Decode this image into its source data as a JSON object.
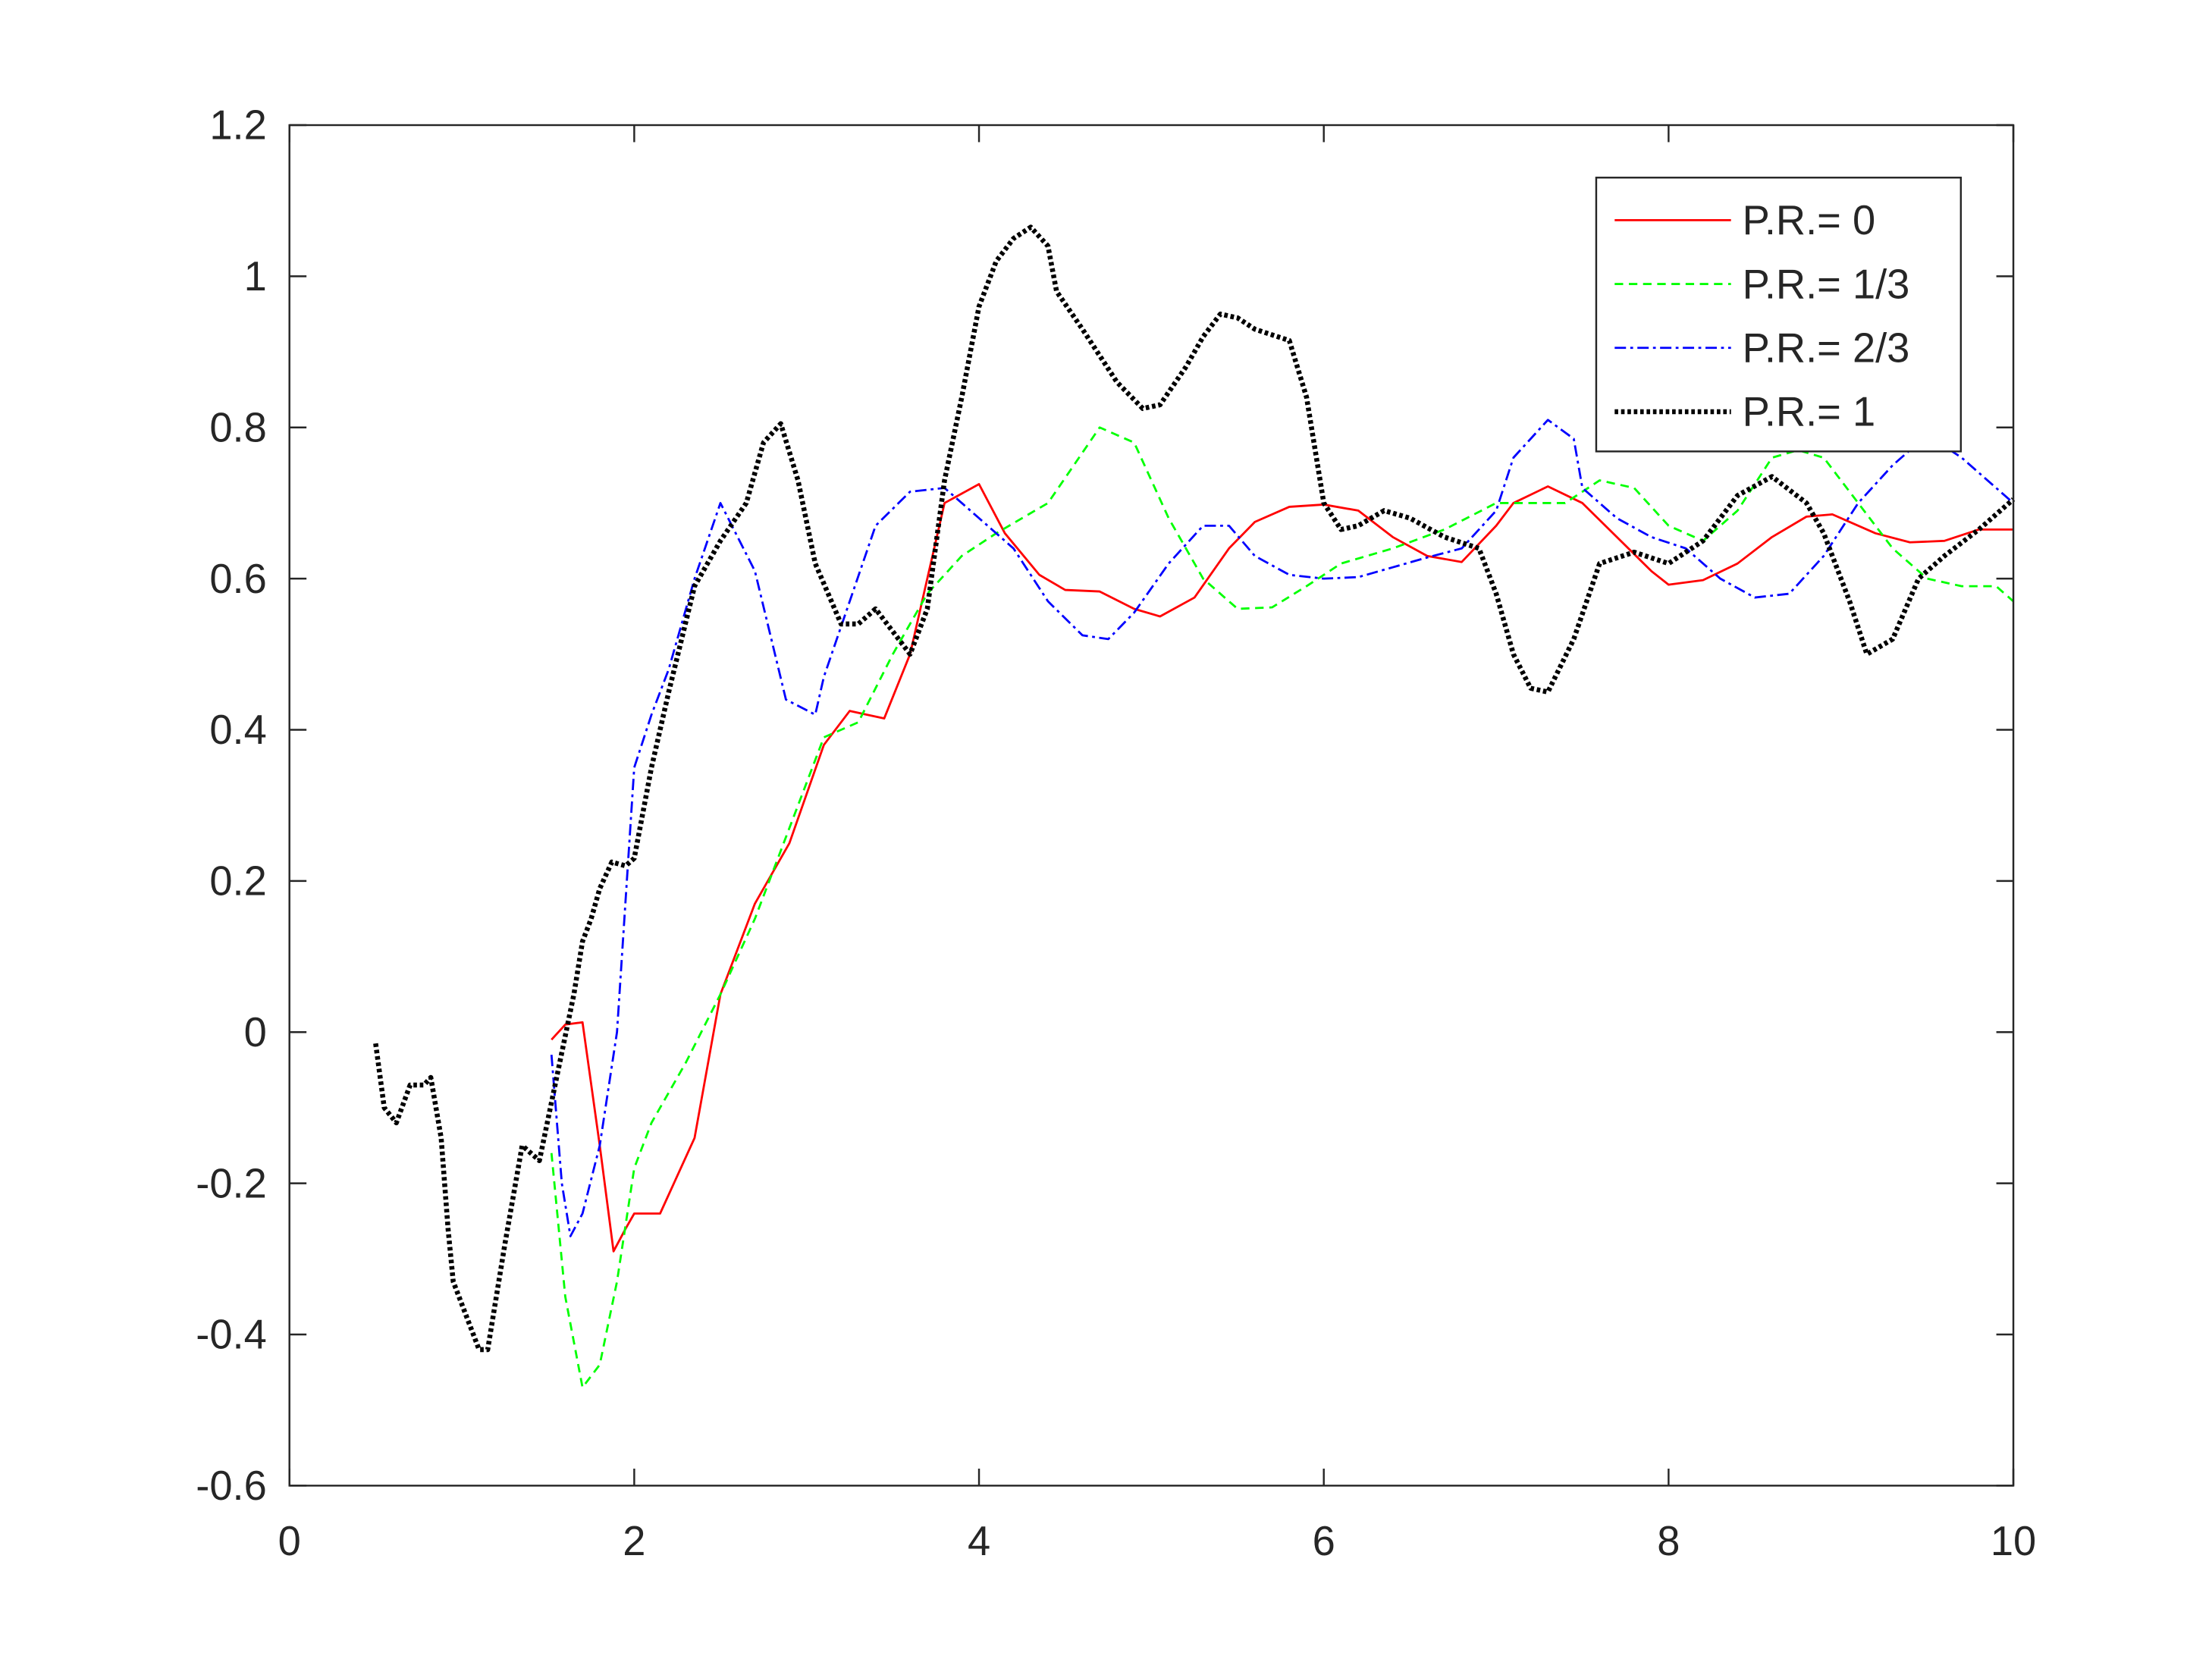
{
  "chart_data": {
    "type": "line",
    "xlim": [
      0,
      10
    ],
    "xticks": [
      0,
      2,
      4,
      6,
      8,
      10
    ],
    "ylim": [
      -0.6,
      1.2
    ],
    "yticks": [
      -0.6,
      -0.4,
      -0.2,
      0,
      0.2,
      0.4,
      0.6,
      0.8,
      1,
      1.2
    ],
    "legend": "northeast",
    "series": [
      {
        "name": "P.R.= 0",
        "color": "#ff0000",
        "dash": "solid",
        "x": [
          1.52,
          1.6,
          1.7,
          1.8,
          1.88,
          1.95,
          2.0,
          2.15,
          2.35,
          2.5,
          2.7,
          2.9,
          3.1,
          3.25,
          3.35,
          3.45,
          3.6,
          3.8,
          4.0,
          4.15,
          4.35,
          4.5,
          4.7,
          4.9,
          5.05,
          5.25,
          5.45,
          5.6,
          5.8,
          6.0,
          6.2,
          6.4,
          6.6,
          6.8,
          7.0,
          7.1,
          7.3,
          7.5,
          7.7,
          7.9,
          8.0,
          8.2,
          8.4,
          8.6,
          8.8,
          8.95,
          9.2,
          9.4,
          9.6,
          9.8,
          10
        ],
        "values": [
          -0.01,
          0.01,
          0.013,
          -0.15,
          -0.29,
          -0.26,
          -0.24,
          -0.24,
          -0.14,
          0.05,
          0.17,
          0.25,
          0.38,
          0.425,
          0.42,
          0.415,
          0.5,
          0.7,
          0.725,
          0.66,
          0.605,
          0.585,
          0.583,
          0.56,
          0.55,
          0.575,
          0.64,
          0.675,
          0.695,
          0.698,
          0.69,
          0.655,
          0.63,
          0.622,
          0.67,
          0.7,
          0.722,
          0.7,
          0.655,
          0.61,
          0.592,
          0.598,
          0.62,
          0.655,
          0.682,
          0.685,
          0.66,
          0.648,
          0.65,
          0.665,
          0.665
        ]
      },
      {
        "name": "P.R.= 1/3",
        "color": "#00ff00",
        "dash": "dashed",
        "x": [
          1.52,
          1.6,
          1.7,
          1.8,
          1.9,
          2.0,
          2.1,
          2.3,
          2.5,
          2.7,
          2.9,
          3.1,
          3.3,
          3.5,
          3.7,
          3.9,
          4.1,
          4.4,
          4.7,
          4.9,
          5.1,
          5.3,
          5.5,
          5.7,
          5.9,
          6.1,
          6.4,
          6.7,
          7.0,
          7.2,
          7.4,
          7.6,
          7.8,
          8.0,
          8.2,
          8.4,
          8.6,
          8.75,
          8.9,
          9.1,
          9.3,
          9.5,
          9.7,
          9.9,
          10
        ],
        "values": [
          -0.16,
          -0.35,
          -0.47,
          -0.44,
          -0.33,
          -0.18,
          -0.12,
          -0.04,
          0.05,
          0.15,
          0.27,
          0.39,
          0.41,
          0.5,
          0.58,
          0.63,
          0.66,
          0.7,
          0.8,
          0.78,
          0.68,
          0.6,
          0.56,
          0.562,
          0.59,
          0.62,
          0.64,
          0.665,
          0.7,
          0.7,
          0.7,
          0.73,
          0.72,
          0.67,
          0.65,
          0.69,
          0.76,
          0.77,
          0.76,
          0.7,
          0.64,
          0.6,
          0.59,
          0.59,
          0.57
        ]
      },
      {
        "name": "P.R.= 2/3",
        "color": "#0000ff",
        "dash": "dashdot",
        "x": [
          1.52,
          1.58,
          1.63,
          1.7,
          1.8,
          1.9,
          2.0,
          2.1,
          2.2,
          2.35,
          2.5,
          2.7,
          2.88,
          3.05,
          3.1,
          3.4,
          3.6,
          3.8,
          4.0,
          4.2,
          4.4,
          4.6,
          4.75,
          4.9,
          5.1,
          5.3,
          5.45,
          5.6,
          5.8,
          6.0,
          6.2,
          6.4,
          6.6,
          6.8,
          7.0,
          7.1,
          7.3,
          7.45,
          7.5,
          7.7,
          7.9,
          8.1,
          8.3,
          8.5,
          8.7,
          8.9,
          9.1,
          9.3,
          9.5,
          9.7,
          9.9,
          10
        ],
        "values": [
          -0.03,
          -0.2,
          -0.27,
          -0.24,
          -0.15,
          0.0,
          0.35,
          0.42,
          0.48,
          0.6,
          0.7,
          0.61,
          0.44,
          0.42,
          0.47,
          0.67,
          0.715,
          0.72,
          0.68,
          0.64,
          0.57,
          0.525,
          0.52,
          0.555,
          0.62,
          0.67,
          0.67,
          0.63,
          0.605,
          0.6,
          0.602,
          0.615,
          0.628,
          0.64,
          0.69,
          0.76,
          0.81,
          0.785,
          0.72,
          0.68,
          0.655,
          0.64,
          0.6,
          0.575,
          0.58,
          0.63,
          0.7,
          0.75,
          0.79,
          0.76,
          0.72,
          0.7
        ]
      },
      {
        "name": "P.R.= 1",
        "color": "#000000",
        "dash": "dotted",
        "x": [
          0.5,
          0.55,
          0.62,
          0.7,
          0.78,
          0.82,
          0.88,
          0.92,
          0.95,
          1.05,
          1.1,
          1.15,
          1.25,
          1.35,
          1.45,
          1.55,
          1.65,
          1.7,
          1.75,
          1.8,
          1.87,
          1.95,
          2.0,
          2.1,
          2.2,
          2.35,
          2.5,
          2.65,
          2.75,
          2.85,
          2.95,
          3.05,
          3.2,
          3.3,
          3.4,
          3.5,
          3.6,
          3.7,
          3.8,
          3.9,
          4.0,
          4.1,
          4.2,
          4.3,
          4.4,
          4.45,
          4.6,
          4.8,
          4.95,
          5.05,
          5.2,
          5.3,
          5.4,
          5.5,
          5.6,
          5.8,
          5.9,
          6.0,
          6.1,
          6.2,
          6.35,
          6.5,
          6.7,
          6.9,
          7.0,
          7.1,
          7.2,
          7.3,
          7.45,
          7.6,
          7.8,
          8.0,
          8.2,
          8.4,
          8.6,
          8.8,
          8.9,
          9.05,
          9.15,
          9.3,
          9.45,
          9.6,
          9.8,
          10
        ],
        "values": [
          -0.015,
          -0.1,
          -0.12,
          -0.07,
          -0.07,
          -0.06,
          -0.14,
          -0.26,
          -0.33,
          -0.39,
          -0.42,
          -0.42,
          -0.28,
          -0.15,
          -0.17,
          -0.06,
          0.05,
          0.12,
          0.15,
          0.19,
          0.225,
          0.22,
          0.23,
          0.35,
          0.45,
          0.59,
          0.65,
          0.7,
          0.78,
          0.805,
          0.73,
          0.62,
          0.54,
          0.54,
          0.56,
          0.53,
          0.5,
          0.56,
          0.73,
          0.84,
          0.96,
          1.02,
          1.05,
          1.065,
          1.04,
          0.98,
          0.93,
          0.86,
          0.825,
          0.83,
          0.88,
          0.92,
          0.95,
          0.945,
          0.93,
          0.915,
          0.84,
          0.7,
          0.665,
          0.67,
          0.69,
          0.68,
          0.655,
          0.64,
          0.58,
          0.5,
          0.455,
          0.45,
          0.52,
          0.62,
          0.635,
          0.62,
          0.65,
          0.71,
          0.735,
          0.7,
          0.66,
          0.57,
          0.5,
          0.52,
          0.6,
          0.63,
          0.665,
          0.705
        ]
      }
    ]
  }
}
